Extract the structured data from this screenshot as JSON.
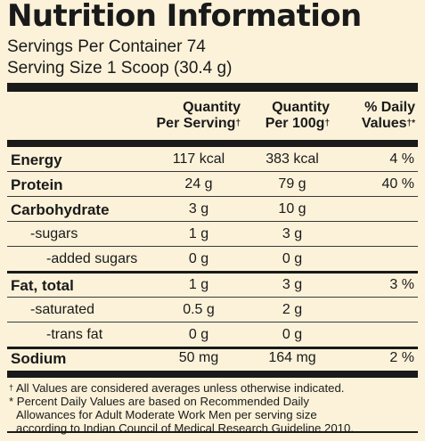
{
  "title": "Nutrition Information",
  "servings_per_container": "Servings Per Container 74",
  "serving_size": "Serving Size 1 Scoop (30.4 g)",
  "headers": {
    "per_serving_line1": "Quantity",
    "per_serving_line2": "Per Serving",
    "per_100g_line1": "Quantity",
    "per_100g_line2": "Per 100g",
    "daily_line1": "% Daily",
    "daily_line2": "Values",
    "dagger": "†",
    "dagger_star": "†*"
  },
  "rows": [
    {
      "name": "Energy",
      "per_serving": "117 kcal",
      "per_100g": "383 kcal",
      "daily": "4 %"
    },
    {
      "name": "Protein",
      "per_serving": "24 g",
      "per_100g": "79 g",
      "daily": "40 %"
    },
    {
      "name": "Carbohydrate",
      "per_serving": "3 g",
      "per_100g": "10 g",
      "daily": ""
    },
    {
      "name": "-sugars",
      "per_serving": "1 g",
      "per_100g": "3 g",
      "daily": ""
    },
    {
      "name": "-added sugars",
      "per_serving": "0 g",
      "per_100g": "0 g",
      "daily": ""
    },
    {
      "name": "Fat, total",
      "per_serving": "1 g",
      "per_100g": "3 g",
      "daily": "3 %"
    },
    {
      "name": "-saturated",
      "per_serving": "0.5 g",
      "per_100g": "2 g",
      "daily": ""
    },
    {
      "name": "-trans fat",
      "per_serving": "0 g",
      "per_100g": "0 g",
      "daily": ""
    },
    {
      "name": "Sodium",
      "per_serving": "50 mg",
      "per_100g": "164 mg",
      "daily": "2 %"
    }
  ],
  "footnotes": {
    "dagger": "†",
    "note1": "All Values are considered averages unless otherwise indicated.",
    "note2_line1": "* Percent Daily Values are based on Recommended Daily",
    "note2_line2": "Allowances for Adult Moderate Work Men per serving size",
    "note2_line3": "according to Indian Council of Medical Research Guideline 2010."
  }
}
